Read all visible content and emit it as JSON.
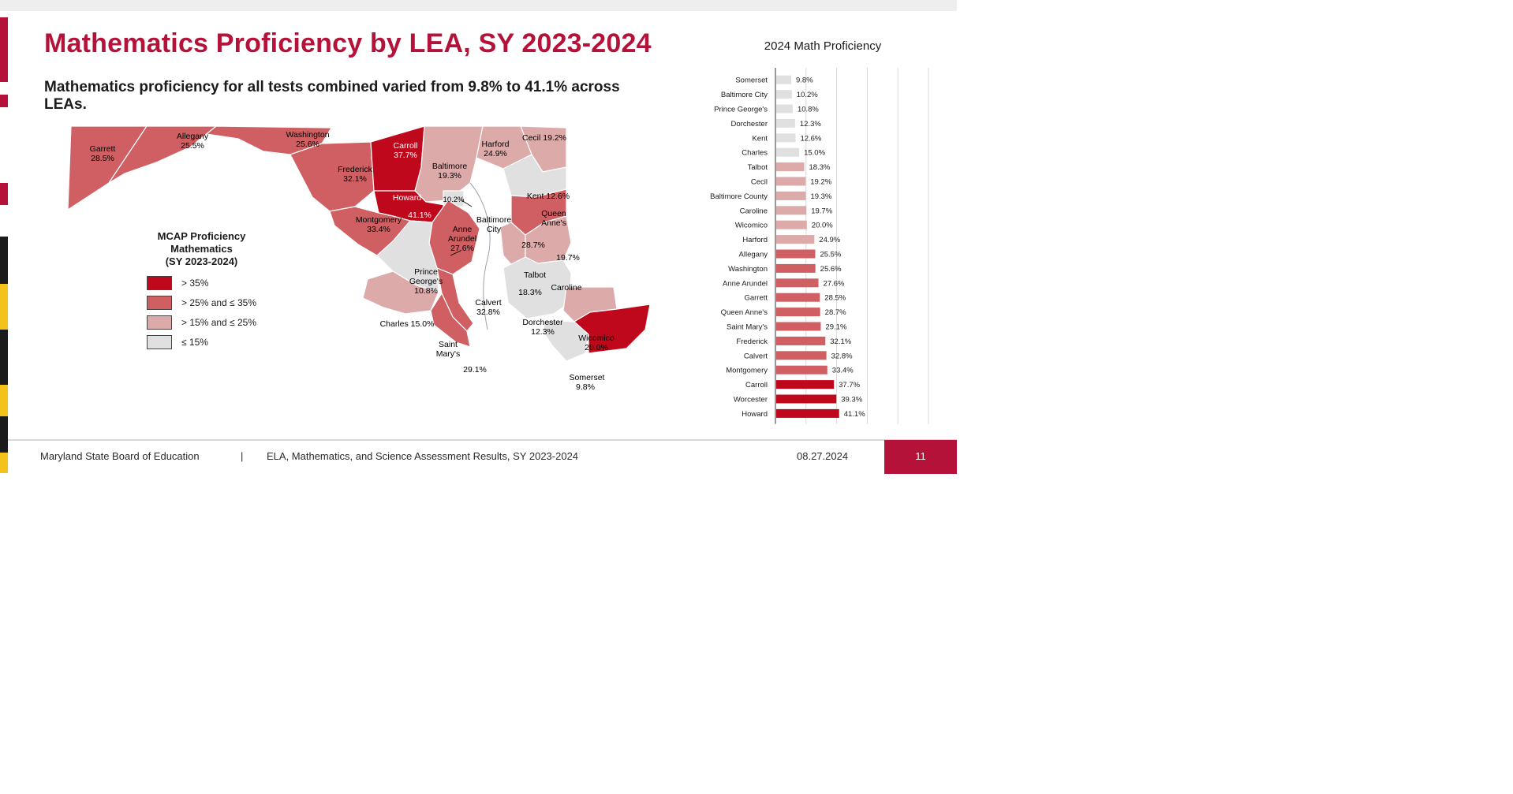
{
  "slide": {
    "title": "Mathematics Proficiency by LEA, SY 2023-2024",
    "subtitle": "Mathematics proficiency for all tests combined varied from 9.8% to 41.1% across LEAs."
  },
  "colors": {
    "brand": "#b5123a",
    "level_gt35": "#c0081c",
    "level_25_35": "#cf5f62",
    "level_15_25": "#ddaaaa",
    "level_le15": "#e0e0e0",
    "accent_yellow": "#f5c21b"
  },
  "map": {
    "legend": {
      "title_lines": [
        "MCAP Proficiency",
        "Mathematics",
        "(SY 2023-2024)"
      ],
      "items": [
        {
          "label": "> 35%",
          "color": "#c0081c"
        },
        {
          "label": "> 25% and ≤ 35%",
          "color": "#cf5f62"
        },
        {
          "label": "> 15% and ≤ 25%",
          "color": "#ddaaaa"
        },
        {
          "label": "≤ 15%",
          "color": "#e0e0e0"
        }
      ]
    },
    "labels": {
      "garrett_name": "Garrett",
      "garrett_value": "28.5%",
      "allegany_name": "Allegany",
      "allegany_value": "25.5%",
      "washington_name": "Washington",
      "washington_value": "25.6%",
      "carroll_name": "Carroll",
      "carroll_value": "37.7%",
      "frederick_name": "Frederick",
      "frederick_value": "32.1%",
      "baltimore_name": "Baltimore",
      "baltimore_value": "19.3%",
      "harford_name": "Harford",
      "harford_value": "24.9%",
      "cecil": "Cecil 19.2%",
      "howard_name": "Howard",
      "howard_value": "41.1%",
      "balt_city_value": "10.2%",
      "balt_city_name_1": "Baltimore",
      "balt_city_name_2": "City",
      "kent": "Kent 12.6%",
      "queen_annes_1": "Queen",
      "queen_annes_2": "Anne's",
      "queen_annes_value": "28.7%",
      "montgomery_name": "Montgomery",
      "montgomery_value": "33.4%",
      "anne_arundel_1": "Anne",
      "anne_arundel_2": "Arundel",
      "anne_arundel_value": "27.6%",
      "caroline_value": "19.7%",
      "caroline_name": "Caroline",
      "talbot_name": "Talbot",
      "talbot_value": "18.3%",
      "prince_georges_1": "Prince",
      "prince_georges_2": "George's",
      "prince_georges_value": "10.8%",
      "calvert_name": "Calvert",
      "calvert_value": "32.8%",
      "charles": "Charles 15.0%",
      "dorchester_name": "Dorchester",
      "dorchester_value": "12.3%",
      "wicomico_name": "Wicomico",
      "wicomico_value": "20.0%",
      "saint_marys_1": "Saint",
      "saint_marys_2": "Mary's",
      "saint_marys_value": "29.1%",
      "somerset_name": "Somerset",
      "somerset_value": "9.8%",
      "worcester_name": "Worcester",
      "worcester_value": "39.3%"
    }
  },
  "chart_data": {
    "type": "bar",
    "orientation": "horizontal",
    "title": "2024 Math Proficiency",
    "categories": [
      "Somerset",
      "Baltimore City",
      "Prince George's",
      "Dorchester",
      "Kent",
      "Charles",
      "Talbot",
      "Cecil",
      "Baltimore County",
      "Caroline",
      "Wicomico",
      "Harford",
      "Allegany",
      "Washington",
      "Anne Arundel",
      "Garrett",
      "Queen Anne's",
      "Saint Mary's",
      "Frederick",
      "Calvert",
      "Montgomery",
      "Carroll",
      "Worcester",
      "Howard"
    ],
    "values": [
      9.8,
      10.2,
      10.8,
      12.3,
      12.6,
      15.0,
      18.3,
      19.2,
      19.3,
      19.7,
      20.0,
      24.9,
      25.5,
      25.6,
      27.6,
      28.5,
      28.7,
      29.1,
      32.1,
      32.8,
      33.4,
      37.7,
      39.3,
      41.1
    ],
    "value_labels": [
      "9.8%",
      "10.2%",
      "10.8%",
      "12.3%",
      "12.6%",
      "15.0%",
      "18.3%",
      "19.2%",
      "19.3%",
      "19.7%",
      "20.0%",
      "24.9%",
      "25.5%",
      "25.6%",
      "27.6%",
      "28.5%",
      "28.7%",
      "29.1%",
      "32.1%",
      "32.8%",
      "33.4%",
      "37.7%",
      "39.3%",
      "41.1%"
    ],
    "x_ticks": [
      "0%",
      "20%",
      "40%",
      "60%",
      "80%",
      "100%"
    ],
    "xlim": [
      0,
      100
    ],
    "grid": true,
    "legend": "none"
  },
  "footer": {
    "org": "Maryland State Board of Education",
    "separator": "|",
    "report": "ELA, Mathematics, and Science Assessment Results, SY 2023-2024",
    "date": "08.27.2024",
    "page_number": "11"
  }
}
